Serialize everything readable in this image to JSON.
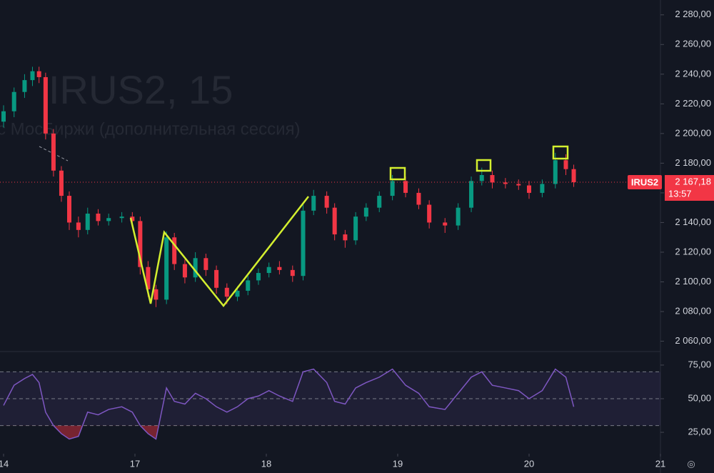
{
  "chart_data": {
    "type": "candlestick",
    "watermark_title": "IRUS2, 15",
    "watermark_subtitle": "с МосБиржи (дополнительная сессия)",
    "symbol_tag": "IRUS2",
    "last_price": {
      "value": 2167.18,
      "label": "2 167,18"
    },
    "countdown": "13:57",
    "up_color": "#089981",
    "down_color": "#f23645",
    "x": [
      0,
      0.08,
      0.16,
      0.22,
      0.27,
      0.32,
      0.38,
      0.44,
      0.5,
      0.57,
      0.64,
      0.72,
      0.8,
      0.9,
      0.98,
      1.04,
      1.1,
      1.16,
      1.24,
      1.3,
      1.38,
      1.46,
      1.54,
      1.62,
      1.7,
      1.78,
      1.86,
      1.94,
      2.02,
      2.1,
      2.2,
      2.28,
      2.36,
      2.46,
      2.52,
      2.6,
      2.68,
      2.76,
      2.86,
      2.96,
      3.06,
      3.16,
      3.24,
      3.36,
      3.46,
      3.56,
      3.64,
      3.72,
      3.82,
      3.92,
      4,
      4.1,
      4.2,
      4.28,
      4.34
    ],
    "open": [
      2208,
      2215,
      2228,
      2236,
      2242,
      2238,
      2200,
      2175,
      2158,
      2140,
      2135,
      2146,
      2141,
      2143,
      2144,
      2141,
      2110,
      2095,
      2088,
      2130,
      2112,
      2103,
      2116,
      2108,
      2096,
      2090,
      2094,
      2101,
      2106,
      2110,
      2108,
      2104,
      2148,
      2158,
      2150,
      2132,
      2128,
      2144,
      2150,
      2158,
      2168,
      2160,
      2152,
      2140,
      2138,
      2150,
      2168,
      2172,
      2167,
      2166,
      2165,
      2160,
      2166,
      2182,
      2176
    ],
    "high": [
      2219,
      2231,
      2240,
      2245,
      2245,
      2241,
      2203,
      2178,
      2161,
      2144,
      2150,
      2149,
      2146,
      2147,
      2147,
      2144,
      2114,
      2098,
      2134,
      2133,
      2115,
      2120,
      2119,
      2111,
      2099,
      2097,
      2104,
      2109,
      2113,
      2114,
      2111,
      2152,
      2162,
      2161,
      2153,
      2135,
      2147,
      2153,
      2161,
      2172,
      2171,
      2163,
      2155,
      2143,
      2153,
      2171,
      2177,
      2175,
      2170,
      2169,
      2168,
      2169,
      2187,
      2186,
      2179
    ],
    "low": [
      2204,
      2211,
      2224,
      2232,
      2234,
      2196,
      2171,
      2154,
      2135,
      2130,
      2132,
      2138,
      2138,
      2140,
      2138,
      2105,
      2090,
      2083,
      2085,
      2108,
      2099,
      2100,
      2104,
      2092,
      2085,
      2087,
      2091,
      2098,
      2103,
      2105,
      2100,
      2101,
      2145,
      2146,
      2128,
      2123,
      2125,
      2141,
      2147,
      2155,
      2157,
      2149,
      2136,
      2133,
      2135,
      2147,
      2165,
      2163,
      2163,
      2162,
      2156,
      2157,
      2163,
      2172,
      2164
    ],
    "close": [
      2215,
      2228,
      2236,
      2242,
      2238,
      2200,
      2175,
      2158,
      2140,
      2135,
      2146,
      2141,
      2143,
      2144,
      2141,
      2110,
      2095,
      2088,
      2130,
      2112,
      2103,
      2116,
      2108,
      2096,
      2090,
      2094,
      2101,
      2106,
      2110,
      2108,
      2104,
      2148,
      2158,
      2150,
      2132,
      2128,
      2144,
      2150,
      2158,
      2168,
      2160,
      2152,
      2140,
      2138,
      2150,
      2168,
      2172,
      2167,
      2166,
      2165,
      2160,
      2166,
      2182,
      2176,
      2167.18
    ],
    "xlim": [
      0,
      5
    ],
    "xticks": [
      {
        "value": 0,
        "label": "14"
      },
      {
        "value": 1,
        "label": "17"
      },
      {
        "value": 2,
        "label": "18"
      },
      {
        "value": 3,
        "label": "19"
      },
      {
        "value": 4,
        "label": "20"
      },
      {
        "value": 5,
        "label": "21"
      }
    ],
    "ylim": [
      2054,
      2290
    ],
    "yticks": [
      {
        "value": 2060,
        "label": "2 060,00"
      },
      {
        "value": 2080,
        "label": "2 080,00"
      },
      {
        "value": 2100,
        "label": "2 100,00"
      },
      {
        "value": 2120,
        "label": "2 120,00"
      },
      {
        "value": 2140,
        "label": "2 140,00"
      },
      {
        "value": 2160,
        "label": "2 160,00"
      },
      {
        "value": 2180,
        "label": "2 180,00"
      },
      {
        "value": 2200,
        "label": "2 200,00"
      },
      {
        "value": 2220,
        "label": "2 220,00"
      },
      {
        "value": 2240,
        "label": "2 240,00"
      },
      {
        "value": 2260,
        "label": "2 260,00"
      },
      {
        "value": 2280,
        "label": "2 280,00"
      }
    ],
    "rsi": {
      "color": "#7e57c2",
      "values": [
        45,
        60,
        65,
        68,
        62,
        40,
        30,
        24,
        20,
        22,
        40,
        38,
        42,
        44,
        40,
        30,
        24,
        20,
        58,
        48,
        46,
        54,
        50,
        44,
        40,
        44,
        50,
        52,
        56,
        52,
        48,
        70,
        72,
        62,
        48,
        46,
        58,
        62,
        66,
        72,
        60,
        54,
        44,
        42,
        54,
        66,
        70,
        60,
        58,
        56,
        50,
        56,
        72,
        66,
        44
      ],
      "ylim": [
        16,
        84
      ],
      "band": [
        30,
        70
      ],
      "midline": 50,
      "yticks": [
        {
          "value": 25,
          "label": "25,00"
        },
        {
          "value": 50,
          "label": "50,00"
        },
        {
          "value": 75,
          "label": "75,00"
        }
      ]
    }
  }
}
